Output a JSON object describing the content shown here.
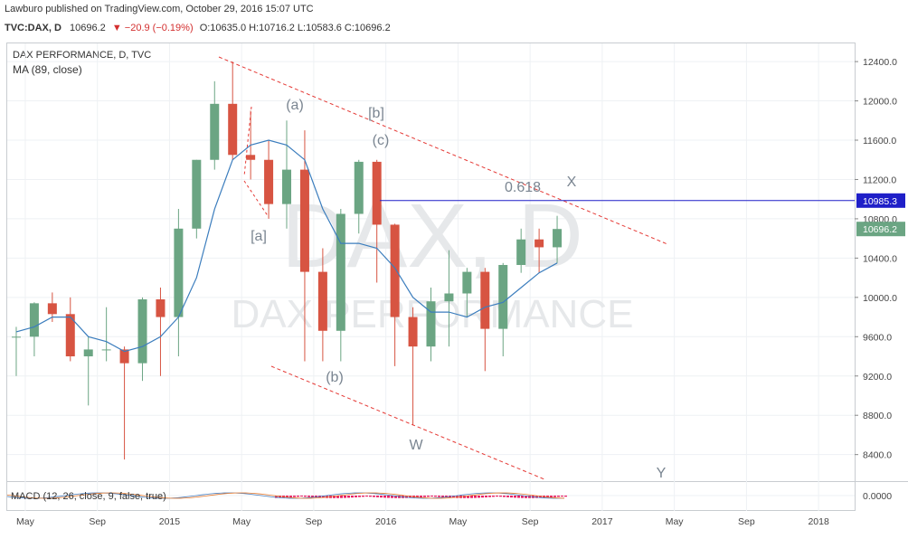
{
  "header": {
    "publisher": "Lawburo published on TradingView.com, October 29, 2016 15:07 UTC",
    "symbol": "TVC:DAX, D",
    "last": "10696.2",
    "change": "▼ −20.9 (−0.19%)",
    "ohlc": "O:10635.0 H:10716.2 L:10583.6 C:10696.2"
  },
  "chart_data": {
    "type": "candlestick",
    "title": "DAX PERFORMANCE, D, TVC",
    "watermark": "DAX, D",
    "watermark_subtitle": "DAX PERFORMANCE",
    "x": [
      "2014-04",
      "2014-05",
      "2014-06",
      "2014-07",
      "2014-08",
      "2014-09",
      "2014-10",
      "2014-11",
      "2014-12",
      "2015-01",
      "2015-02",
      "2015-03",
      "2015-04",
      "2015-05",
      "2015-06",
      "2015-07",
      "2015-08",
      "2015-09",
      "2015-10",
      "2015-11",
      "2015-12",
      "2016-01",
      "2016-02",
      "2016-03",
      "2016-04",
      "2016-05",
      "2016-06",
      "2016-07",
      "2016-08",
      "2016-09",
      "2016-10"
    ],
    "open": [
      9600,
      9600,
      9940,
      9830,
      9400,
      9470,
      9470,
      9330,
      9980,
      9800,
      10700,
      11400,
      11970,
      11450,
      11400,
      10950,
      11300,
      10260,
      9660,
      10850,
      11380,
      10740,
      9800,
      9500,
      9960,
      10040,
      10260,
      9680,
      10330,
      10590,
      10510
    ],
    "high": [
      9700,
      9950,
      10050,
      10000,
      9600,
      9900,
      9500,
      10000,
      10100,
      10900,
      11400,
      12200,
      12400,
      11900,
      11600,
      11800,
      11700,
      10500,
      10900,
      11400,
      11400,
      10750,
      9900,
      10100,
      10480,
      10300,
      10300,
      10350,
      10700,
      10700,
      10830
    ],
    "low": [
      9200,
      9400,
      9750,
      9350,
      8900,
      9350,
      8350,
      9150,
      9200,
      9400,
      10600,
      11300,
      11400,
      11200,
      10800,
      10700,
      9350,
      9350,
      9350,
      10650,
      10150,
      9300,
      8700,
      9350,
      9500,
      9800,
      9250,
      9400,
      10250,
      10250,
      10350
    ],
    "close": [
      9600,
      9940,
      9830,
      9400,
      9470,
      9470,
      9330,
      9980,
      9800,
      10700,
      11400,
      11970,
      11450,
      11400,
      10950,
      11300,
      10260,
      9660,
      10850,
      11380,
      10740,
      9800,
      9500,
      9960,
      10040,
      10260,
      9680,
      10330,
      10590,
      10510,
      10696.2
    ],
    "up_color": "#6ba583",
    "down_color": "#d75442",
    "series": [
      {
        "name": "MA (89, close)",
        "color": "#3b7dbd",
        "values": [
          9650,
          9700,
          9800,
          9800,
          9600,
          9550,
          9450,
          9500,
          9600,
          9800,
          10200,
          10900,
          11400,
          11550,
          11600,
          11550,
          11400,
          10900,
          10550,
          10550,
          10500,
          10300,
          10000,
          9850,
          9850,
          9800,
          9900,
          9950,
          10100,
          10250,
          10350
        ]
      }
    ],
    "xlim": [
      "2014-04",
      "2018-03"
    ],
    "xticks": [
      {
        "value": "2014-05",
        "label": "May"
      },
      {
        "value": "2014-09",
        "label": "Sep"
      },
      {
        "value": "2015-01",
        "label": "2015"
      },
      {
        "value": "2015-05",
        "label": "May"
      },
      {
        "value": "2015-09",
        "label": "Sep"
      },
      {
        "value": "2016-01",
        "label": "2016"
      },
      {
        "value": "2016-05",
        "label": "May"
      },
      {
        "value": "2016-09",
        "label": "Sep"
      },
      {
        "value": "2017-01",
        "label": "2017"
      },
      {
        "value": "2017-05",
        "label": "May"
      },
      {
        "value": "2017-09",
        "label": "Sep"
      },
      {
        "value": "2018-01",
        "label": "2018"
      }
    ],
    "ylim": [
      8130,
      12585
    ],
    "yticks": [
      {
        "value": 8400,
        "label": "8400.0"
      },
      {
        "value": 8800,
        "label": "8800.0"
      },
      {
        "value": 9200,
        "label": "9200.0"
      },
      {
        "value": 9600,
        "label": "9600.0"
      },
      {
        "value": 10000,
        "label": "10000.0"
      },
      {
        "value": 10400,
        "label": "10400.0"
      },
      {
        "value": 10800,
        "label": "10800.0"
      },
      {
        "value": 11200,
        "label": "11200.0"
      },
      {
        "value": 11600,
        "label": "11600.0"
      },
      {
        "value": 12000,
        "label": "12000.0"
      },
      {
        "value": 12400,
        "label": "12400.0"
      }
    ],
    "grid": true,
    "level": 10985.3,
    "level_color": "#1f1fc8",
    "annotations": [
      "(a)",
      "[b]",
      "(c)",
      "[a]",
      "(b)",
      "W",
      "X",
      "Y",
      "0.618"
    ],
    "macd": {
      "label": "MACD (12, 26, close, 9, false, true)",
      "yticks": [
        {
          "value": 0,
          "label": "0.0000"
        }
      ]
    }
  }
}
